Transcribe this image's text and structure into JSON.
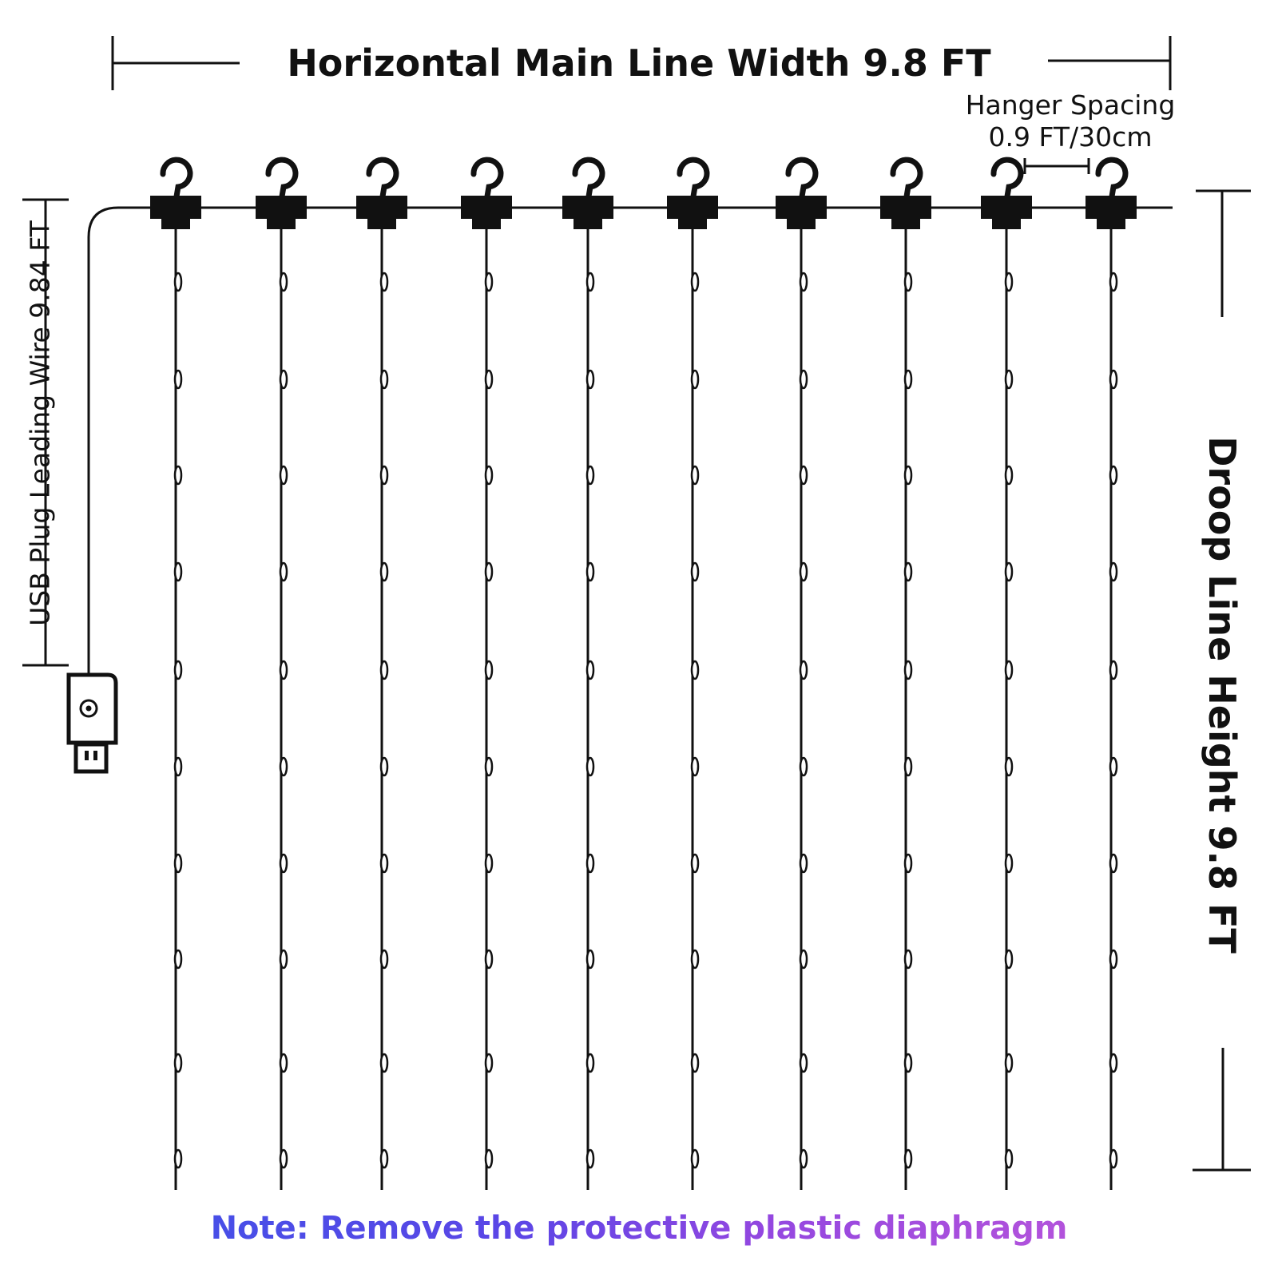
{
  "diagram": {
    "title": "Horizontal Main Line Width 9.8 FT",
    "hanger_spacing": {
      "line1": "Hanger Spacing",
      "line2": "0.9 FT/30cm"
    },
    "usb_label": "USB Plug Leading Wire 9.84 FT",
    "droop_label": "Droop Line Height 9.8 FT",
    "note": {
      "prefix": "Note: ",
      "text": "Remove the protective plastic diaphragm"
    },
    "strand_count": 10,
    "bulbs_per_strand": 10,
    "icons": [
      "hook-icon",
      "clip-icon",
      "bulb-icon",
      "usb-plug-icon"
    ],
    "colors": {
      "line": "#111111",
      "note_gradient_start": "#3a55e8",
      "note_gradient_end": "#c85bd8"
    }
  }
}
